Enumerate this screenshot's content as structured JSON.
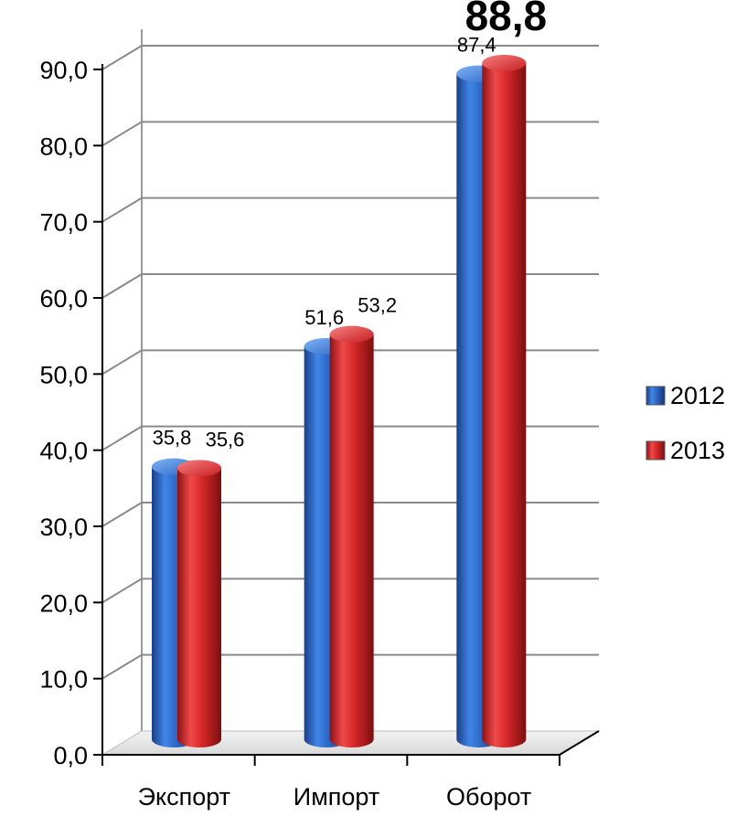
{
  "chart_data": {
    "type": "bar",
    "categories": [
      "Экспорт",
      "Импорт",
      "Оборот"
    ],
    "series": [
      {
        "name": "2012",
        "color": "#2F67C6",
        "values": [
          35.8,
          51.6,
          87.4
        ],
        "labels": [
          "35,8",
          "51,6",
          "87,4"
        ]
      },
      {
        "name": "2013",
        "color": "#D8282A",
        "values": [
          35.6,
          53.2,
          88.8
        ],
        "labels": [
          "35,6",
          "53,2",
          "88,8"
        ]
      }
    ],
    "y_ticks": [
      "0,0",
      "10,0",
      "20,0",
      "30,0",
      "40,0",
      "50,0",
      "60,0",
      "70,0",
      "80,0",
      "90,0"
    ],
    "ylim": [
      0,
      90
    ],
    "grid": true,
    "legend_position": "right",
    "emphasized_label": "88,8",
    "style": "3d-cylinder"
  }
}
